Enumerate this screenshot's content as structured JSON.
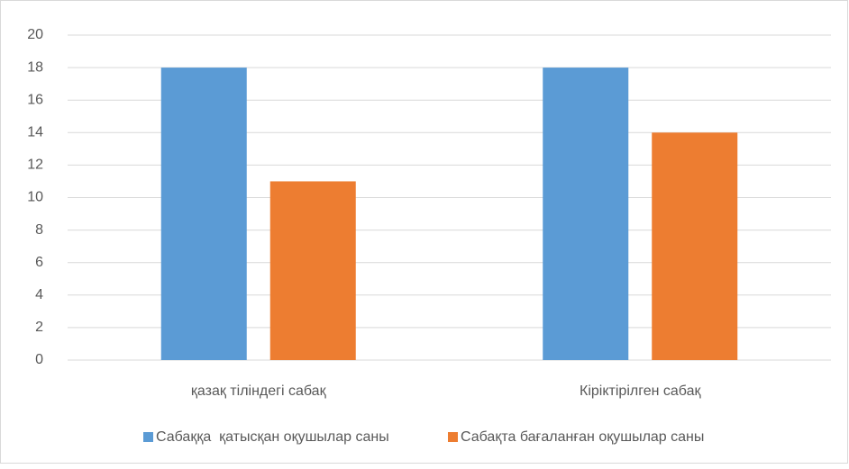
{
  "chart_data": {
    "type": "bar",
    "categories": [
      "қазақ тіліндегі сабақ",
      "Кіріктірілген сабақ"
    ],
    "series": [
      {
        "name": "Сабаққа  қатысқан оқушылар саны",
        "color": "#5b9bd5",
        "values": [
          18,
          18
        ]
      },
      {
        "name": "Сабақта бағаланған оқушылар саны",
        "color": "#ed7d31",
        "values": [
          11,
          14
        ]
      }
    ],
    "ylim": [
      0,
      20
    ],
    "yticks": [
      0,
      2,
      4,
      6,
      8,
      10,
      12,
      14,
      16,
      18,
      20
    ],
    "grid": true,
    "legend": "bottom"
  }
}
